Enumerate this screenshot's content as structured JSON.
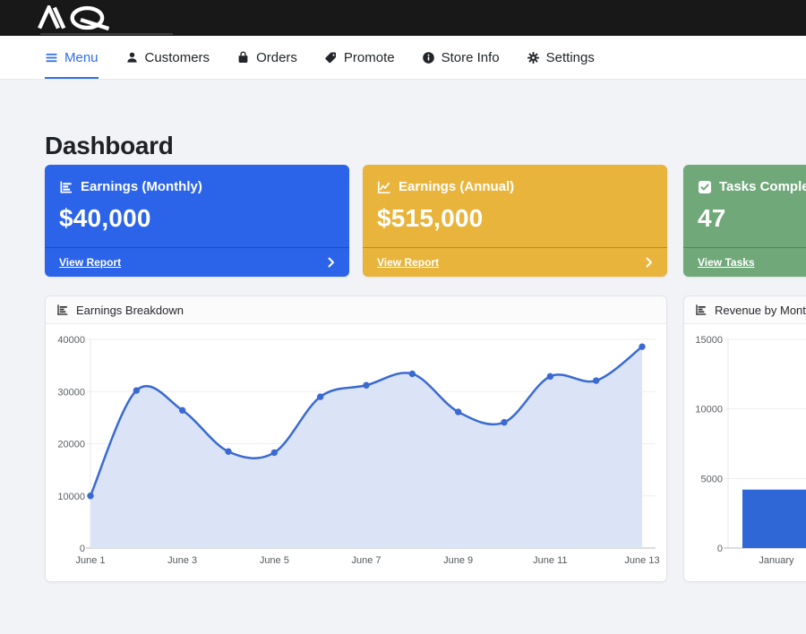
{
  "theme": {
    "accent": "#2e6eec",
    "topbar_bg": "#181818",
    "page_bg": "#f2f3f6"
  },
  "topbar": {
    "logo_text": "MQ"
  },
  "nav": {
    "items": [
      {
        "label": "Menu",
        "icon": "hamburger-icon",
        "active": true
      },
      {
        "label": "Customers",
        "icon": "person-icon",
        "active": false
      },
      {
        "label": "Orders",
        "icon": "shopping-bag-icon",
        "active": false
      },
      {
        "label": "Promote",
        "icon": "tag-icon",
        "active": false
      },
      {
        "label": "Store Info",
        "icon": "info-circle-icon",
        "active": false
      },
      {
        "label": "Settings",
        "icon": "gear-icon",
        "active": false
      }
    ]
  },
  "page": {
    "title": "Dashboard"
  },
  "stat_cards": [
    {
      "title": "Earnings (Monthly)",
      "value": "$40,000",
      "link": "View Report",
      "color": "#2b64e9",
      "icon": "horizontal-bar-chart-icon"
    },
    {
      "title": "Earnings (Annual)",
      "value": "$515,000",
      "link": "View Report",
      "color": "#e9b43c",
      "icon": "line-chart-icon"
    },
    {
      "title": "Tasks Completed",
      "value": "47",
      "link": "View Tasks",
      "color": "#70a87a",
      "icon": "check-square-icon"
    }
  ],
  "chart_data": [
    {
      "type": "area",
      "title": "Earnings Breakdown",
      "x": [
        "June 1",
        "June 2",
        "June 3",
        "June 4",
        "June 5",
        "June 6",
        "June 7",
        "June 8",
        "June 9",
        "June 10",
        "June 11",
        "June 12",
        "June 13"
      ],
      "values": [
        10000,
        30200,
        26400,
        18500,
        18300,
        29000,
        31200,
        33400,
        26100,
        24100,
        32900,
        32100,
        38600
      ],
      "xtick_labels": [
        "June 1",
        "June 3",
        "June 5",
        "June 7",
        "June 9",
        "June 11",
        "June 13"
      ],
      "yticks": [
        0,
        10000,
        20000,
        30000,
        40000
      ],
      "ylim": [
        0,
        40000
      ],
      "grid": true,
      "legend": "none",
      "line_color": "#3a6ad1",
      "fill_color": "#dbe4f6",
      "point_color": "#3a6ad1"
    },
    {
      "type": "bar",
      "title": "Revenue by Month",
      "categories": [
        "January"
      ],
      "values": [
        4200
      ],
      "yticks": [
        0,
        5000,
        10000,
        15000
      ],
      "ylim": [
        0,
        15000
      ],
      "grid": true,
      "legend": "none",
      "bar_color": "#2f68d6"
    }
  ]
}
